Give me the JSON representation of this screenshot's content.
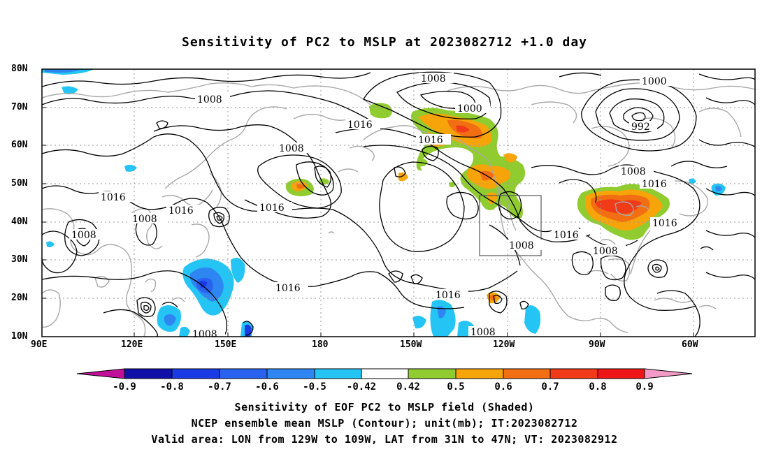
{
  "title": "Sensitivity of PC2 to MSLP at 2023082712 +1.0 day",
  "lat_labels": [
    "80N",
    "70N",
    "60N",
    "50N",
    "40N",
    "30N",
    "20N",
    "10N"
  ],
  "lon_labels": [
    "90E",
    "120E",
    "150E",
    "180",
    "150W",
    "120W",
    "90W",
    "60W"
  ],
  "isobar_labels": {
    "a": "1008",
    "b": "1008",
    "c": "1000",
    "d": "1000",
    "e": "992",
    "f": "1016",
    "g": "1016",
    "h": "1008",
    "i": "1016",
    "j": "1016",
    "k": "1016",
    "l": "1008",
    "m": "1016",
    "n": "1008",
    "o": "1016",
    "p": "1016",
    "q": "1016",
    "r": "1008",
    "s": "1008",
    "t": "1008",
    "u": "1008"
  },
  "colorbar": {
    "ticks": [
      "-0.9",
      "-0.8",
      "-0.7",
      "-0.6",
      "-0.5",
      "-0.42",
      "0.42",
      "0.5",
      "0.6",
      "0.7",
      "0.8",
      "0.9"
    ],
    "colors": [
      "#c0109a",
      "#1010a8",
      "#1a3ae6",
      "#2a62f0",
      "#2e86f2",
      "#24c4f4",
      "#ffffff",
      "#90cc30",
      "#f7a40a",
      "#f26e12",
      "#f03a18",
      "#ee1616",
      "#f39ac6"
    ]
  },
  "caption": {
    "line1": "Sensitivity of EOF PC2 to MSLP field (Shaded)",
    "line2": "NCEP ensemble mean MSLP (Contour); unit(mb); IT:2023082712",
    "line3": "Valid area: LON from 129W to 109W, LAT from 31N to 47N; VT: 2023082912"
  }
}
